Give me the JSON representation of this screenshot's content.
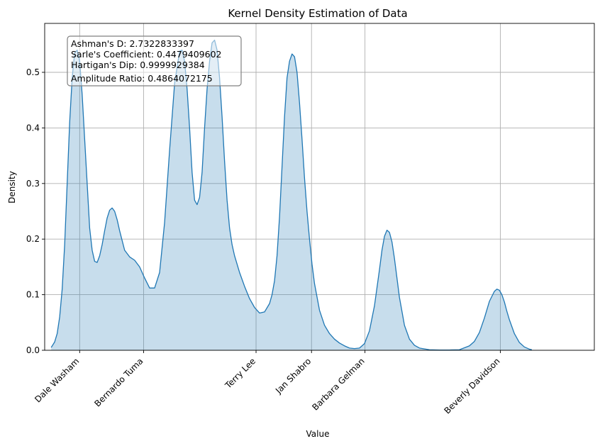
{
  "chart_data": {
    "type": "area",
    "title": "Kernel Density Estimation of Data",
    "xlabel": "Value",
    "ylabel": "Density",
    "xlim": [
      -0.7,
      10.3
    ],
    "ylim": [
      0,
      0.588
    ],
    "grid": true,
    "fill_color": "#1f77b4",
    "fill_opacity": 0.25,
    "line_color": "#1f77b4",
    "x_categories": [
      {
        "label": "Dale Washam",
        "x": 0.0
      },
      {
        "label": "Bernardo Tuma",
        "x": 1.28
      },
      {
        "label": "Terry Lee",
        "x": 3.53
      },
      {
        "label": "Jan Shabro",
        "x": 4.64
      },
      {
        "label": "Barbara Gelman",
        "x": 5.71
      },
      {
        "label": "Beverly Davidson",
        "x": 8.42
      }
    ],
    "y_ticks": [
      0.0,
      0.1,
      0.2,
      0.3,
      0.4,
      0.5
    ],
    "y_tick_labels": [
      "0.0",
      "0.1",
      "0.2",
      "0.3",
      "0.4",
      "0.5"
    ],
    "series": [
      {
        "x": [
          -0.57,
          -0.5,
          -0.45,
          -0.4,
          -0.35,
          -0.3,
          -0.25,
          -0.2,
          -0.15,
          -0.1,
          -0.05,
          0.0,
          0.05,
          0.1,
          0.15,
          0.2,
          0.25,
          0.3,
          0.35,
          0.4,
          0.45,
          0.5,
          0.55,
          0.6,
          0.65,
          0.7,
          0.75,
          0.8,
          0.9,
          1.0,
          1.1,
          1.2,
          1.3,
          1.4,
          1.5,
          1.6,
          1.7,
          1.8,
          1.9,
          2.0,
          2.05,
          2.1,
          2.15,
          2.2,
          2.25,
          2.3,
          2.35,
          2.4,
          2.45,
          2.5,
          2.55,
          2.6,
          2.65,
          2.7,
          2.75,
          2.8,
          2.85,
          2.9,
          2.95,
          3.0,
          3.05,
          3.1,
          3.15,
          3.2,
          3.3,
          3.4,
          3.5,
          3.6,
          3.7,
          3.8,
          3.85,
          3.9,
          3.95,
          4.0,
          4.05,
          4.1,
          4.15,
          4.2,
          4.25,
          4.3,
          4.35,
          4.4,
          4.45,
          4.5,
          4.55,
          4.6,
          4.65,
          4.7,
          4.8,
          4.9,
          5.0,
          5.1,
          5.2,
          5.3,
          5.4,
          5.5,
          5.6,
          5.7,
          5.8,
          5.9,
          6.0,
          6.05,
          6.1,
          6.15,
          6.2,
          6.25,
          6.3,
          6.4,
          6.5,
          6.6,
          6.7,
          6.8,
          7.0,
          7.2,
          7.4,
          7.6,
          7.8,
          7.9,
          8.0,
          8.1,
          8.2,
          8.3,
          8.35,
          8.4,
          8.45,
          8.5,
          8.55,
          8.6,
          8.7,
          8.8,
          8.9,
          9.0,
          9.05
        ],
        "y": [
          0.005,
          0.015,
          0.03,
          0.06,
          0.11,
          0.19,
          0.3,
          0.41,
          0.49,
          0.535,
          0.54,
          0.52,
          0.46,
          0.38,
          0.3,
          0.22,
          0.18,
          0.16,
          0.158,
          0.17,
          0.19,
          0.215,
          0.238,
          0.252,
          0.256,
          0.25,
          0.235,
          0.215,
          0.18,
          0.168,
          0.162,
          0.15,
          0.13,
          0.112,
          0.112,
          0.14,
          0.23,
          0.36,
          0.48,
          0.538,
          0.54,
          0.52,
          0.47,
          0.4,
          0.32,
          0.27,
          0.262,
          0.275,
          0.32,
          0.4,
          0.47,
          0.52,
          0.553,
          0.558,
          0.54,
          0.49,
          0.42,
          0.34,
          0.27,
          0.22,
          0.19,
          0.17,
          0.155,
          0.14,
          0.115,
          0.093,
          0.077,
          0.067,
          0.069,
          0.084,
          0.1,
          0.125,
          0.17,
          0.24,
          0.33,
          0.42,
          0.49,
          0.52,
          0.533,
          0.528,
          0.5,
          0.445,
          0.38,
          0.31,
          0.25,
          0.2,
          0.155,
          0.12,
          0.072,
          0.045,
          0.03,
          0.02,
          0.013,
          0.008,
          0.004,
          0.003,
          0.004,
          0.012,
          0.035,
          0.08,
          0.145,
          0.18,
          0.205,
          0.216,
          0.212,
          0.195,
          0.165,
          0.095,
          0.045,
          0.02,
          0.009,
          0.004,
          0.001,
          0.0005,
          0.0005,
          0.001,
          0.008,
          0.016,
          0.032,
          0.058,
          0.088,
          0.106,
          0.11,
          0.108,
          0.1,
          0.087,
          0.07,
          0.055,
          0.03,
          0.014,
          0.006,
          0.002,
          0.001
        ]
      }
    ],
    "stats_box": {
      "lines": [
        "Ashman's D: 2.7322833397",
        "Sarle's Coefficient: 0.4479409602",
        "Hartigan's Dip: 0.9999929384",
        "Amplitude Ratio: 0.4864072175"
      ],
      "placement": "top-left"
    }
  }
}
